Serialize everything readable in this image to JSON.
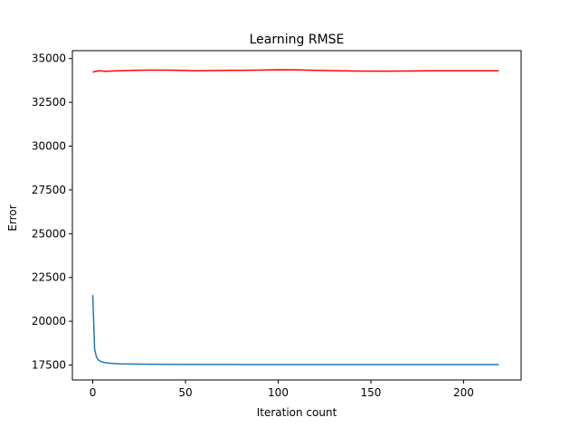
{
  "chart_data": {
    "type": "line",
    "title": "Learning RMSE",
    "xlabel": "Iteration count",
    "ylabel": "Error",
    "xlim": [
      -11,
      231
    ],
    "ylim": [
      16650,
      35450
    ],
    "xticks": [
      0,
      50,
      100,
      150,
      200
    ],
    "yticks": [
      17500,
      20000,
      22500,
      25000,
      27500,
      30000,
      32500,
      35000
    ],
    "grid": false,
    "legend": "none",
    "series": [
      {
        "color": "#ff0000",
        "x": [
          0,
          3,
          5,
          7,
          10,
          20,
          30,
          40,
          50,
          55,
          60,
          70,
          80,
          90,
          100,
          110,
          120,
          130,
          140,
          150,
          160,
          170,
          180,
          190,
          200,
          210,
          219
        ],
        "y": [
          34230,
          34300,
          34290,
          34270,
          34290,
          34320,
          34340,
          34340,
          34320,
          34300,
          34310,
          34320,
          34330,
          34340,
          34360,
          34350,
          34330,
          34310,
          34290,
          34280,
          34280,
          34290,
          34300,
          34300,
          34300,
          34300,
          34300
        ]
      },
      {
        "color": "#1f77b4",
        "x": [
          0,
          1,
          2,
          3,
          4,
          5,
          7,
          10,
          15,
          20,
          30,
          40,
          60,
          80,
          100,
          150,
          200,
          219
        ],
        "y": [
          21500,
          18400,
          17950,
          17800,
          17720,
          17680,
          17630,
          17600,
          17570,
          17560,
          17545,
          17540,
          17535,
          17530,
          17530,
          17530,
          17530,
          17530
        ]
      }
    ]
  }
}
